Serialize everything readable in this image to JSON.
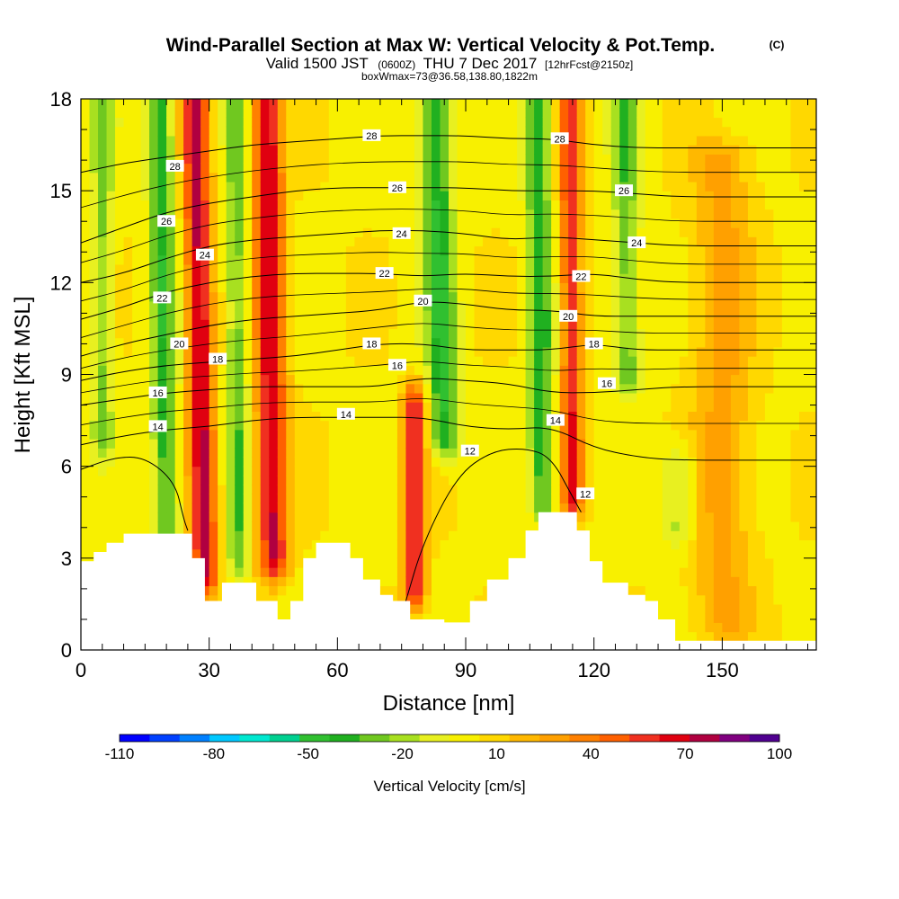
{
  "chart_data": {
    "type": "heatmap",
    "title": "Wind-Parallel Section at Max W: Vertical Velocity & Pot.Temp.",
    "title_unit": "(C)",
    "subtitle_valid": "Valid 1500 JST",
    "subtitle_z": "(0600Z)",
    "subtitle_date": "THU 7 Dec 2017",
    "subtitle_fcst": "[12hrFcst@2150z]",
    "subtitle2": "boxWmax=73@36.58,138.80,1822m",
    "xlabel": "Distance [nm]",
    "ylabel": "Height [Kft MSL]",
    "xlim": [
      0,
      172
    ],
    "ylim": [
      0,
      18
    ],
    "x_ticks": [
      "0",
      "30",
      "60",
      "90",
      "120",
      "150"
    ],
    "x_tick_values": [
      0,
      30,
      60,
      90,
      120,
      150
    ],
    "y_ticks": [
      "0",
      "3",
      "6",
      "9",
      "12",
      "15",
      "18"
    ],
    "y_tick_values": [
      0,
      3,
      6,
      9,
      12,
      15,
      18
    ],
    "colorbar": {
      "label": "Vertical Velocity [cm/s]",
      "tick_labels": [
        "-110",
        "-80",
        "-50",
        "-20",
        "10",
        "40",
        "70",
        "100"
      ],
      "tick_values": [
        -110,
        -80,
        -50,
        -20,
        10,
        40,
        70,
        100
      ],
      "levels": [
        -110,
        -100,
        -90,
        -80,
        -70,
        -60,
        -50,
        -40,
        -30,
        -20,
        -10,
        0,
        10,
        20,
        30,
        40,
        50,
        60,
        70,
        80,
        90,
        100
      ],
      "colors": [
        "#0000ff",
        "#0040ff",
        "#0080ff",
        "#00c8ff",
        "#00e8d0",
        "#00d090",
        "#30c030",
        "#20b020",
        "#70c820",
        "#a8e020",
        "#e8f020",
        "#f8f000",
        "#ffd800",
        "#ffb800",
        "#ffa000",
        "#ff8000",
        "#ff6000",
        "#f03020",
        "#e00010",
        "#b00040",
        "#800080",
        "#500090"
      ]
    },
    "terrain_kft": [
      [
        0,
        2.9
      ],
      [
        3,
        3.2
      ],
      [
        6,
        3.5
      ],
      [
        10,
        3.8
      ],
      [
        23,
        3.8
      ],
      [
        26,
        3.0
      ],
      [
        29,
        1.6
      ],
      [
        33,
        2.2
      ],
      [
        36,
        2.2
      ],
      [
        41,
        1.6
      ],
      [
        46,
        1.0
      ],
      [
        49,
        1.6
      ],
      [
        52,
        3.0
      ],
      [
        55,
        3.5
      ],
      [
        60,
        3.5
      ],
      [
        63,
        3.0
      ],
      [
        66,
        2.3
      ],
      [
        70,
        1.8
      ],
      [
        73,
        1.6
      ],
      [
        77,
        1.0
      ],
      [
        80,
        1.0
      ],
      [
        85,
        0.9
      ],
      [
        88,
        0.9
      ],
      [
        91,
        1.6
      ],
      [
        95,
        2.3
      ],
      [
        100,
        3.0
      ],
      [
        104,
        3.9
      ],
      [
        107,
        4.5
      ],
      [
        113,
        4.5
      ],
      [
        116,
        3.9
      ],
      [
        119,
        2.9
      ],
      [
        122,
        2.2
      ],
      [
        128,
        1.8
      ],
      [
        132,
        1.6
      ],
      [
        135,
        1.0
      ],
      [
        139,
        0.3
      ],
      [
        172,
        0.3
      ]
    ],
    "vv_features": [
      {
        "x": 29,
        "zmin": 2.5,
        "zmax": 18,
        "w": 75,
        "width": 3.0,
        "lean": -0.15
      },
      {
        "x": 45,
        "zmin": 3.0,
        "zmax": 18,
        "w": 72,
        "width": 3.5,
        "lean": -0.1
      },
      {
        "x": 78,
        "zmin": 2.0,
        "zmax": 8.0,
        "w": 65,
        "width": 2.5,
        "lean": 0.0
      },
      {
        "x": 115,
        "zmin": 5.0,
        "zmax": 18,
        "w": 60,
        "width": 2.5,
        "lean": -0.05
      },
      {
        "x": 20,
        "zmin": 4,
        "zmax": 18,
        "w": -45,
        "width": 3.0,
        "lean": -0.1
      },
      {
        "x": 37,
        "zmin": 3,
        "zmax": 18,
        "w": -35,
        "width": 2.5,
        "lean": -0.05
      },
      {
        "x": 85,
        "zmin": 7,
        "zmax": 18,
        "w": -50,
        "width": 3.5,
        "lean": -0.2
      },
      {
        "x": 108,
        "zmin": 5,
        "zmax": 18,
        "w": -45,
        "width": 3.0,
        "lean": -0.1
      },
      {
        "x": 128,
        "zmin": 9,
        "zmax": 18,
        "w": -35,
        "width": 3.0,
        "lean": -0.1
      },
      {
        "x": 5,
        "zmin": 7,
        "zmax": 18,
        "w": -30,
        "width": 2.5,
        "lean": 0.0
      },
      {
        "x": 140,
        "zmin": 4,
        "zmax": 6,
        "w": -25,
        "width": 4,
        "lean": 0.0
      },
      {
        "x": 150,
        "zmin": 1,
        "zmax": 16,
        "w": 25,
        "width": 7,
        "lean": 0.0
      }
    ],
    "theta_contours": [
      {
        "value": 12,
        "label": "12",
        "points": [
          [
            0,
            5.9
          ],
          [
            8,
            6.3
          ],
          [
            15,
            6.3
          ],
          [
            22,
            5.5
          ],
          [
            24,
            4.3
          ],
          [
            25,
            3.9
          ]
        ],
        "points2": [
          [
            76,
            1.6
          ],
          [
            80,
            3.5
          ],
          [
            88,
            5.7
          ],
          [
            96,
            6.5
          ],
          [
            104,
            6.6
          ],
          [
            110,
            6.3
          ],
          [
            115,
            5.0
          ],
          [
            117,
            4.5
          ]
        ]
      },
      {
        "value": 14,
        "label": "14",
        "points": [
          [
            0,
            6.7
          ],
          [
            10,
            7.0
          ],
          [
            20,
            7.2
          ],
          [
            30,
            7.3
          ],
          [
            40,
            7.5
          ],
          [
            50,
            7.6
          ],
          [
            60,
            7.6
          ],
          [
            70,
            7.6
          ],
          [
            80,
            7.6
          ],
          [
            90,
            7.3
          ],
          [
            100,
            7.2
          ],
          [
            110,
            7.3
          ],
          [
            120,
            6.6
          ],
          [
            130,
            6.3
          ],
          [
            140,
            6.2
          ],
          [
            155,
            6.2
          ],
          [
            172,
            6.2
          ]
        ]
      },
      {
        "value": 16,
        "label": "16",
        "points": [
          [
            0,
            8.0
          ],
          [
            10,
            8.2
          ],
          [
            20,
            8.4
          ],
          [
            30,
            8.5
          ],
          [
            40,
            8.6
          ],
          [
            50,
            8.6
          ],
          [
            60,
            8.6
          ],
          [
            70,
            8.6
          ],
          [
            80,
            8.9
          ],
          [
            90,
            8.8
          ],
          [
            100,
            8.7
          ],
          [
            110,
            8.4
          ],
          [
            120,
            8.4
          ],
          [
            130,
            8.5
          ],
          [
            140,
            8.6
          ],
          [
            155,
            8.6
          ],
          [
            172,
            8.6
          ]
        ]
      },
      {
        "value": 18,
        "label": "18",
        "points": [
          [
            0,
            8.8
          ],
          [
            10,
            9.1
          ],
          [
            20,
            9.3
          ],
          [
            30,
            9.4
          ],
          [
            40,
            9.5
          ],
          [
            50,
            9.6
          ],
          [
            60,
            9.8
          ],
          [
            70,
            10.0
          ],
          [
            80,
            10.0
          ],
          [
            90,
            9.8
          ],
          [
            100,
            9.8
          ],
          [
            110,
            9.8
          ],
          [
            120,
            10.0
          ],
          [
            130,
            9.8
          ],
          [
            140,
            9.8
          ],
          [
            155,
            9.8
          ],
          [
            172,
            9.8
          ]
        ]
      },
      {
        "value": 20,
        "label": "20",
        "points": [
          [
            0,
            9.6
          ],
          [
            10,
            10.0
          ],
          [
            20,
            10.3
          ],
          [
            30,
            10.6
          ],
          [
            40,
            10.8
          ],
          [
            50,
            10.9
          ],
          [
            60,
            11.0
          ],
          [
            70,
            11.1
          ],
          [
            80,
            11.4
          ],
          [
            90,
            11.3
          ],
          [
            100,
            11.1
          ],
          [
            110,
            11.1
          ],
          [
            120,
            10.9
          ],
          [
            130,
            10.9
          ],
          [
            140,
            10.9
          ],
          [
            155,
            10.9
          ],
          [
            172,
            10.9
          ]
        ]
      },
      {
        "value": 22,
        "label": "22",
        "points": [
          [
            0,
            10.8
          ],
          [
            10,
            11.2
          ],
          [
            20,
            11.7
          ],
          [
            30,
            12.0
          ],
          [
            40,
            12.2
          ],
          [
            50,
            12.3
          ],
          [
            60,
            12.3
          ],
          [
            70,
            12.3
          ],
          [
            80,
            12.2
          ],
          [
            90,
            12.3
          ],
          [
            100,
            12.2
          ],
          [
            110,
            12.2
          ],
          [
            120,
            12.3
          ],
          [
            130,
            12.1
          ],
          [
            140,
            12.0
          ],
          [
            155,
            12.0
          ],
          [
            172,
            12.0
          ]
        ]
      },
      {
        "value": 24,
        "label": "24",
        "points": [
          [
            0,
            12.0
          ],
          [
            10,
            12.3
          ],
          [
            20,
            12.8
          ],
          [
            30,
            13.2
          ],
          [
            40,
            13.4
          ],
          [
            50,
            13.5
          ],
          [
            60,
            13.6
          ],
          [
            70,
            13.7
          ],
          [
            80,
            13.7
          ],
          [
            90,
            13.6
          ],
          [
            100,
            13.4
          ],
          [
            110,
            13.5
          ],
          [
            120,
            13.4
          ],
          [
            130,
            13.3
          ],
          [
            140,
            13.2
          ],
          [
            155,
            13.2
          ],
          [
            172,
            13.2
          ]
        ]
      },
      {
        "value": 26,
        "label": "26",
        "points": [
          [
            0,
            13.3
          ],
          [
            10,
            13.8
          ],
          [
            20,
            14.3
          ],
          [
            30,
            14.6
          ],
          [
            40,
            14.8
          ],
          [
            50,
            15.0
          ],
          [
            60,
            15.1
          ],
          [
            70,
            15.1
          ],
          [
            80,
            15.1
          ],
          [
            90,
            15.1
          ],
          [
            100,
            15.0
          ],
          [
            110,
            15.0
          ],
          [
            120,
            15.0
          ],
          [
            130,
            14.9
          ],
          [
            140,
            14.8
          ],
          [
            155,
            14.8
          ],
          [
            172,
            14.8
          ]
        ]
      },
      {
        "value": 28,
        "label": "28",
        "points": [
          [
            0,
            15.6
          ],
          [
            10,
            15.9
          ],
          [
            20,
            16.1
          ],
          [
            30,
            16.3
          ],
          [
            40,
            16.5
          ],
          [
            50,
            16.6
          ],
          [
            60,
            16.7
          ],
          [
            70,
            16.8
          ],
          [
            80,
            16.8
          ],
          [
            90,
            16.8
          ],
          [
            100,
            16.7
          ],
          [
            110,
            16.7
          ],
          [
            120,
            16.5
          ],
          [
            130,
            16.4
          ],
          [
            140,
            16.4
          ],
          [
            155,
            16.4
          ],
          [
            172,
            16.4
          ]
        ]
      }
    ],
    "contour_labels": [
      {
        "label": "28",
        "x": 22,
        "y": 15.8
      },
      {
        "label": "28",
        "x": 68,
        "y": 16.8
      },
      {
        "label": "28",
        "x": 112,
        "y": 16.7
      },
      {
        "label": "26",
        "x": 20,
        "y": 14.0
      },
      {
        "label": "26",
        "x": 74,
        "y": 15.1
      },
      {
        "label": "26",
        "x": 127,
        "y": 15.0
      },
      {
        "label": "24",
        "x": 29,
        "y": 12.9
      },
      {
        "label": "24",
        "x": 75,
        "y": 13.6
      },
      {
        "label": "24",
        "x": 130,
        "y": 13.3
      },
      {
        "label": "22",
        "x": 19,
        "y": 11.5
      },
      {
        "label": "22",
        "x": 71,
        "y": 12.3
      },
      {
        "label": "22",
        "x": 117,
        "y": 12.2
      },
      {
        "label": "20",
        "x": 23,
        "y": 10.0
      },
      {
        "label": "20",
        "x": 80,
        "y": 11.4
      },
      {
        "label": "20",
        "x": 114,
        "y": 10.9
      },
      {
        "label": "18",
        "x": 32,
        "y": 9.5
      },
      {
        "label": "18",
        "x": 68,
        "y": 10.0
      },
      {
        "label": "18",
        "x": 120,
        "y": 10.0
      },
      {
        "label": "16",
        "x": 18,
        "y": 8.4
      },
      {
        "label": "16",
        "x": 74,
        "y": 9.3
      },
      {
        "label": "16",
        "x": 123,
        "y": 8.7
      },
      {
        "label": "14",
        "x": 18,
        "y": 7.3
      },
      {
        "label": "14",
        "x": 62,
        "y": 7.7
      },
      {
        "label": "14",
        "x": 111,
        "y": 7.5
      },
      {
        "label": "12",
        "x": 91,
        "y": 6.5
      },
      {
        "label": "12",
        "x": 118,
        "y": 5.1
      }
    ]
  }
}
